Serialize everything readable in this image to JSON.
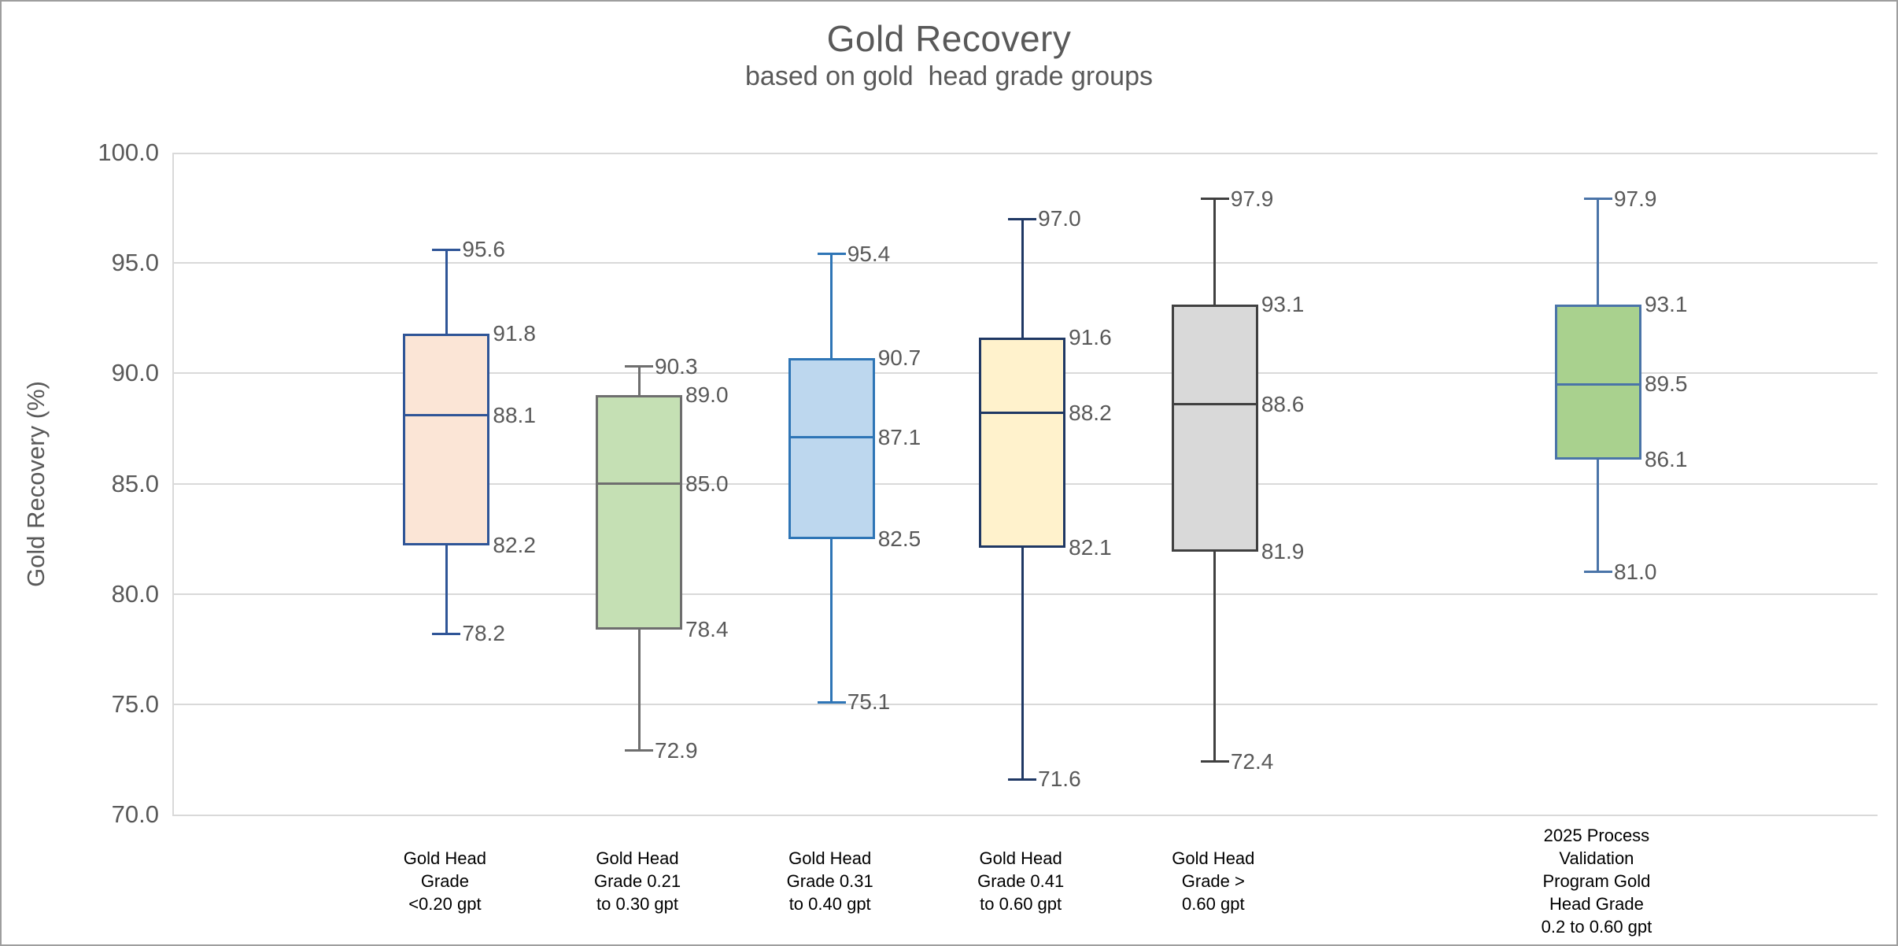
{
  "chart_data": {
    "type": "boxplot",
    "title": "Gold Recovery",
    "subtitle": "based on gold  head grade groups",
    "ylabel": "Gold Recovery (%)",
    "ylim": [
      70,
      100
    ],
    "ytick_step": 5,
    "ytick_decimals": 1,
    "value_label_decimals": 1,
    "grid": true,
    "legend": "none",
    "colors": {
      "grid": "#D9D9D9",
      "axis_line": "#D9D9D9",
      "tick_text": "#595959",
      "title_text": "#595959",
      "subtitle_text": "#595959",
      "value_label_text": "#595959",
      "category_text": "#000000",
      "figure_border": "#9e9e9e",
      "background": "#ffffff"
    },
    "series": [
      {
        "category_lines": [
          "Gold Head",
          "Grade",
          "<0.20 gpt"
        ],
        "max": 95.6,
        "q3": 91.8,
        "median": 88.1,
        "q1": 82.2,
        "min": 78.2,
        "fill": "#FBE5D6",
        "stroke": "#2F5597",
        "center_pct": 16.0
      },
      {
        "category_lines": [
          "Gold Head",
          "Grade 0.21",
          "to 0.30 gpt"
        ],
        "max": 90.3,
        "q3": 89.0,
        "median": 85.0,
        "q1": 78.4,
        "min": 72.9,
        "fill": "#C5E0B4",
        "stroke": "#6E6E6E",
        "center_pct": 27.3
      },
      {
        "category_lines": [
          "Gold Head",
          "Grade 0.31",
          "to 0.40 gpt"
        ],
        "max": 95.4,
        "q3": 90.7,
        "median": 87.1,
        "q1": 82.5,
        "min": 75.1,
        "fill": "#BDD7EE",
        "stroke": "#2E75B6",
        "center_pct": 38.6
      },
      {
        "category_lines": [
          "Gold Head",
          "Grade 0.41",
          "to 0.60 gpt"
        ],
        "max": 97.0,
        "q3": 91.6,
        "median": 88.2,
        "q1": 82.1,
        "min": 71.6,
        "fill": "#FFF2CC",
        "stroke": "#1F3864",
        "center_pct": 49.8
      },
      {
        "category_lines": [
          "Gold Head",
          "Grade >",
          "0.60 gpt"
        ],
        "max": 97.9,
        "q3": 93.1,
        "median": 88.6,
        "q1": 81.9,
        "min": 72.4,
        "fill": "#D9D9D9",
        "stroke": "#404040",
        "center_pct": 61.1
      },
      {
        "category_lines": [
          "2025 Process",
          "Validation",
          "Program Gold",
          "Head Grade",
          "0.2 to 0.60 gpt"
        ],
        "max": 97.9,
        "q3": 93.1,
        "median": 89.5,
        "q1": 86.1,
        "min": 81.0,
        "fill": "#A9D18E",
        "stroke": "#4A74A8",
        "center_pct": 83.6
      }
    ]
  }
}
